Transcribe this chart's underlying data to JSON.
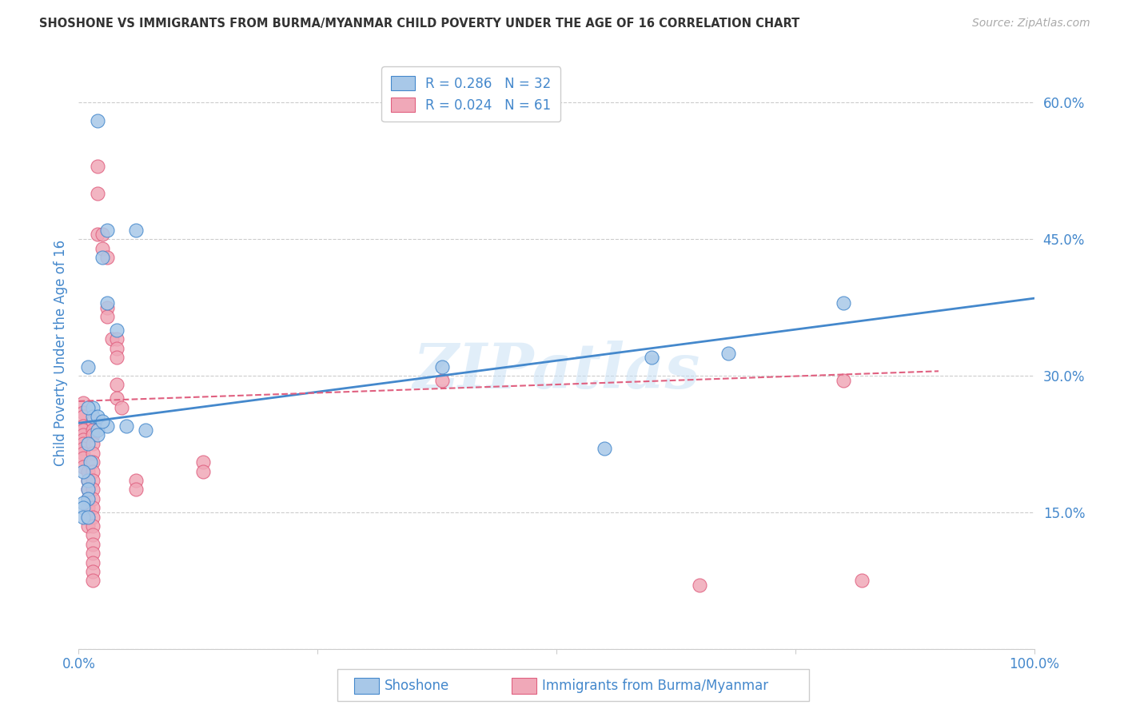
{
  "title": "SHOSHONE VS IMMIGRANTS FROM BURMA/MYANMAR CHILD POVERTY UNDER THE AGE OF 16 CORRELATION CHART",
  "source": "Source: ZipAtlas.com",
  "ylabel": "Child Poverty Under the Age of 16",
  "yticks": [
    0.0,
    0.15,
    0.3,
    0.45,
    0.6
  ],
  "ytick_labels": [
    "",
    "15.0%",
    "30.0%",
    "45.0%",
    "60.0%"
  ],
  "xlim": [
    0.0,
    1.0
  ],
  "ylim": [
    0.0,
    0.65
  ],
  "watermark": "ZIPatlas",
  "color_blue": "#a8c8e8",
  "color_pink": "#f0a8b8",
  "color_blue_line": "#4488cc",
  "color_pink_line": "#e06080",
  "color_grid": "#cccccc",
  "color_title": "#333333",
  "color_axis_blue": "#4488cc",
  "shoshone_x": [
    0.02,
    0.03,
    0.06,
    0.025,
    0.03,
    0.04,
    0.015,
    0.015,
    0.01,
    0.02,
    0.02,
    0.03,
    0.025,
    0.05,
    0.07,
    0.02,
    0.012,
    0.01,
    0.005,
    0.01,
    0.01,
    0.005,
    0.005,
    0.005,
    0.01,
    0.01,
    0.01,
    0.38,
    0.55,
    0.6,
    0.68,
    0.8
  ],
  "shoshone_y": [
    0.58,
    0.46,
    0.46,
    0.43,
    0.38,
    0.35,
    0.265,
    0.255,
    0.265,
    0.255,
    0.24,
    0.245,
    0.25,
    0.245,
    0.24,
    0.235,
    0.205,
    0.185,
    0.195,
    0.175,
    0.165,
    0.16,
    0.155,
    0.145,
    0.145,
    0.225,
    0.31,
    0.31,
    0.22,
    0.32,
    0.325,
    0.38
  ],
  "burma_x": [
    0.02,
    0.02,
    0.02,
    0.025,
    0.025,
    0.03,
    0.03,
    0.03,
    0.035,
    0.04,
    0.04,
    0.04,
    0.04,
    0.04,
    0.045,
    0.005,
    0.005,
    0.005,
    0.005,
    0.005,
    0.005,
    0.005,
    0.005,
    0.005,
    0.005,
    0.005,
    0.005,
    0.01,
    0.01,
    0.01,
    0.01,
    0.01,
    0.01,
    0.01,
    0.015,
    0.015,
    0.015,
    0.015,
    0.015,
    0.015,
    0.015,
    0.015,
    0.015,
    0.015,
    0.015,
    0.015,
    0.015,
    0.015,
    0.015,
    0.015,
    0.015,
    0.015,
    0.015,
    0.06,
    0.06,
    0.13,
    0.13,
    0.38,
    0.65,
    0.8,
    0.82
  ],
  "burma_y": [
    0.53,
    0.5,
    0.455,
    0.455,
    0.44,
    0.43,
    0.375,
    0.365,
    0.34,
    0.34,
    0.33,
    0.32,
    0.29,
    0.275,
    0.265,
    0.27,
    0.26,
    0.255,
    0.245,
    0.24,
    0.235,
    0.23,
    0.225,
    0.22,
    0.215,
    0.21,
    0.2,
    0.195,
    0.185,
    0.175,
    0.165,
    0.155,
    0.145,
    0.135,
    0.25,
    0.24,
    0.235,
    0.225,
    0.215,
    0.205,
    0.195,
    0.185,
    0.175,
    0.165,
    0.155,
    0.145,
    0.135,
    0.125,
    0.115,
    0.105,
    0.095,
    0.085,
    0.075,
    0.185,
    0.175,
    0.205,
    0.195,
    0.295,
    0.07,
    0.295,
    0.075
  ]
}
